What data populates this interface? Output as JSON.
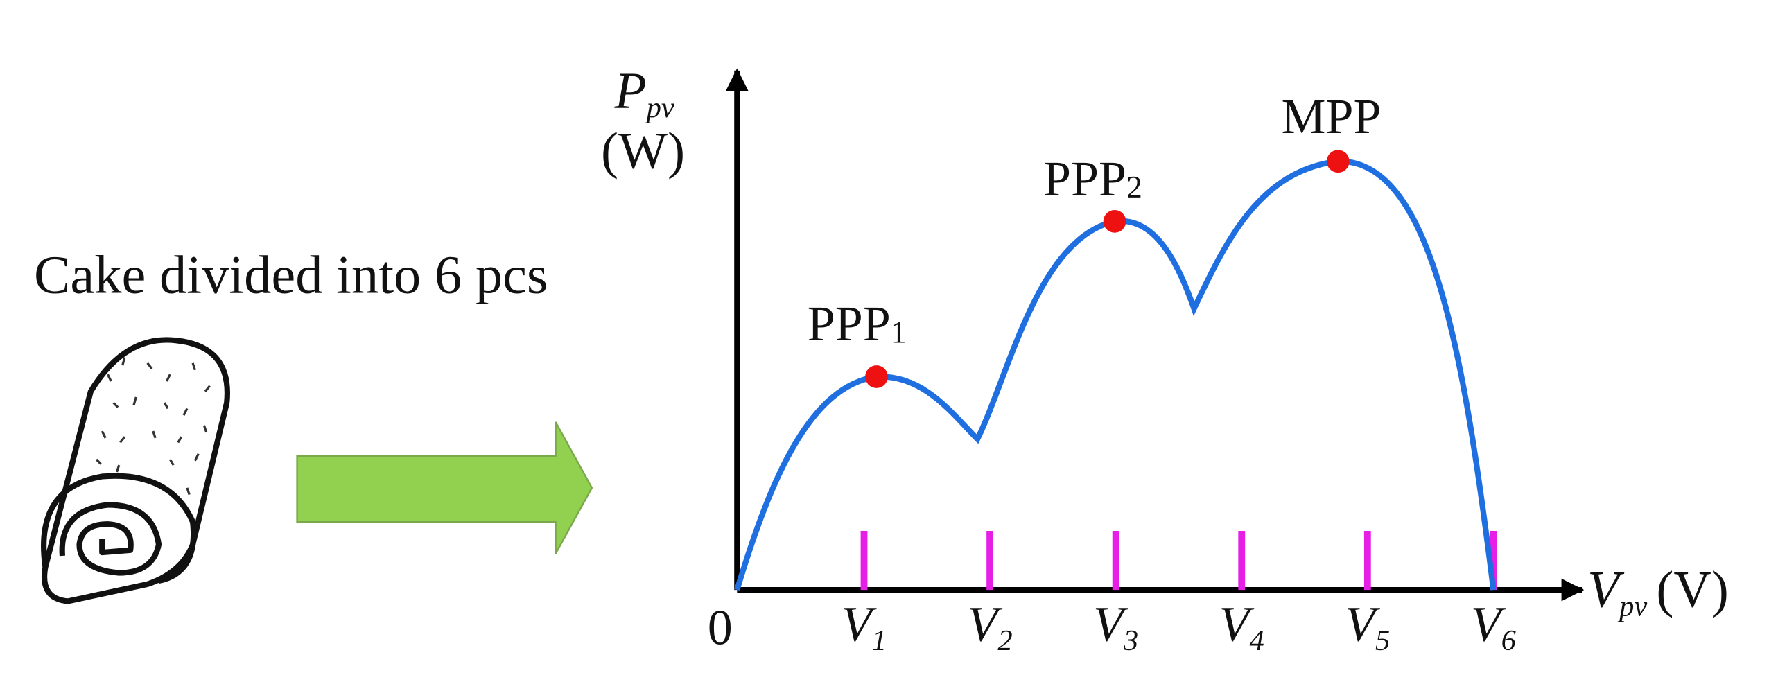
{
  "caption": "Cake divided into 6 pcs",
  "y_axis": {
    "symbol": "P",
    "sub": "pv",
    "unit": "(W)"
  },
  "x_axis": {
    "symbol": "V",
    "sub": "pv",
    "unit": "(V)",
    "origin": "0"
  },
  "ticks": [
    {
      "symbol": "V",
      "sub": "1"
    },
    {
      "symbol": "V",
      "sub": "2"
    },
    {
      "symbol": "V",
      "sub": "3"
    },
    {
      "symbol": "V",
      "sub": "4"
    },
    {
      "symbol": "V",
      "sub": "5"
    },
    {
      "symbol": "V",
      "sub": "6"
    }
  ],
  "peaks": [
    {
      "base": "PPP",
      "sub": "1"
    },
    {
      "base": "PPP",
      "sub": "2"
    },
    {
      "base": "MPP",
      "sub": ""
    }
  ]
}
